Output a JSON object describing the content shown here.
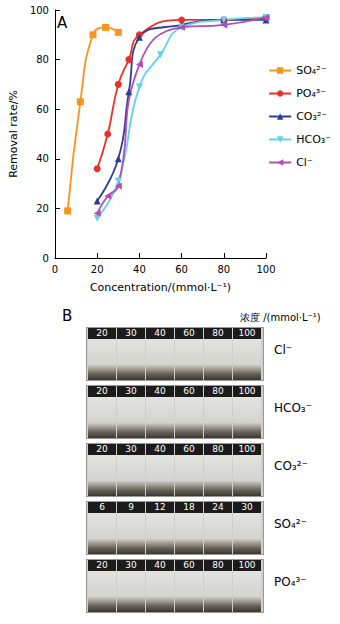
{
  "chart_data": {
    "type": "line",
    "title": "A",
    "x_label": "Concentration/(mmol·L⁻¹)",
    "y_label": "Removal rate/%",
    "xlim": [
      0,
      100
    ],
    "xticks": [
      0,
      20,
      40,
      60,
      80,
      100
    ],
    "ylim": [
      0,
      100
    ],
    "yticks": [
      0,
      20,
      40,
      60,
      80,
      100
    ],
    "grid": false,
    "legend": "right",
    "series": [
      {
        "name": "SO₄²⁻",
        "color": "#f7941d",
        "marker": "square",
        "x": [
          6,
          12,
          18,
          24,
          30
        ],
        "values": [
          19,
          63,
          90,
          93,
          91
        ]
      },
      {
        "name": "PO₄³⁻",
        "color": "#e8312a",
        "marker": "circle",
        "x": [
          20,
          25,
          30,
          35,
          40,
          60,
          80,
          100
        ],
        "values": [
          36,
          50,
          70,
          80,
          90,
          96,
          96,
          97
        ]
      },
      {
        "name": "CO₃²⁻",
        "color": "#2e3d9b",
        "marker": "triangle",
        "x": [
          20,
          30,
          35,
          40,
          60,
          80,
          100
        ],
        "values": [
          23,
          40,
          67,
          89,
          94,
          96,
          96
        ]
      },
      {
        "name": "HCO₃⁻",
        "color": "#62d2e8",
        "marker": "triangle-down",
        "x": [
          20,
          30,
          40,
          50,
          60,
          80,
          100
        ],
        "values": [
          16,
          31,
          69,
          82,
          93,
          96,
          97
        ]
      },
      {
        "name": "Cl⁻",
        "color": "#b04fb1",
        "marker": "triangle-left",
        "x": [
          20,
          25,
          30,
          40,
          60,
          80,
          100
        ],
        "values": [
          18,
          25,
          29,
          78,
          93,
          94,
          97
        ]
      }
    ]
  },
  "photo_panel": {
    "label": "B",
    "header": "浓度 /(mmol·L⁻¹)",
    "rows": [
      {
        "ion": "Cl⁻",
        "concentrations": [
          20,
          30,
          40,
          60,
          80,
          100
        ]
      },
      {
        "ion": "HCO₃⁻",
        "concentrations": [
          20,
          30,
          40,
          60,
          80,
          100
        ]
      },
      {
        "ion": "CO₃²⁻",
        "concentrations": [
          20,
          30,
          40,
          60,
          80,
          100
        ]
      },
      {
        "ion": "SO₄²⁻",
        "concentrations": [
          6,
          9,
          12,
          18,
          24,
          30
        ]
      },
      {
        "ion": "PO₄³⁻",
        "concentrations": [
          20,
          30,
          40,
          60,
          80,
          100
        ]
      }
    ]
  }
}
